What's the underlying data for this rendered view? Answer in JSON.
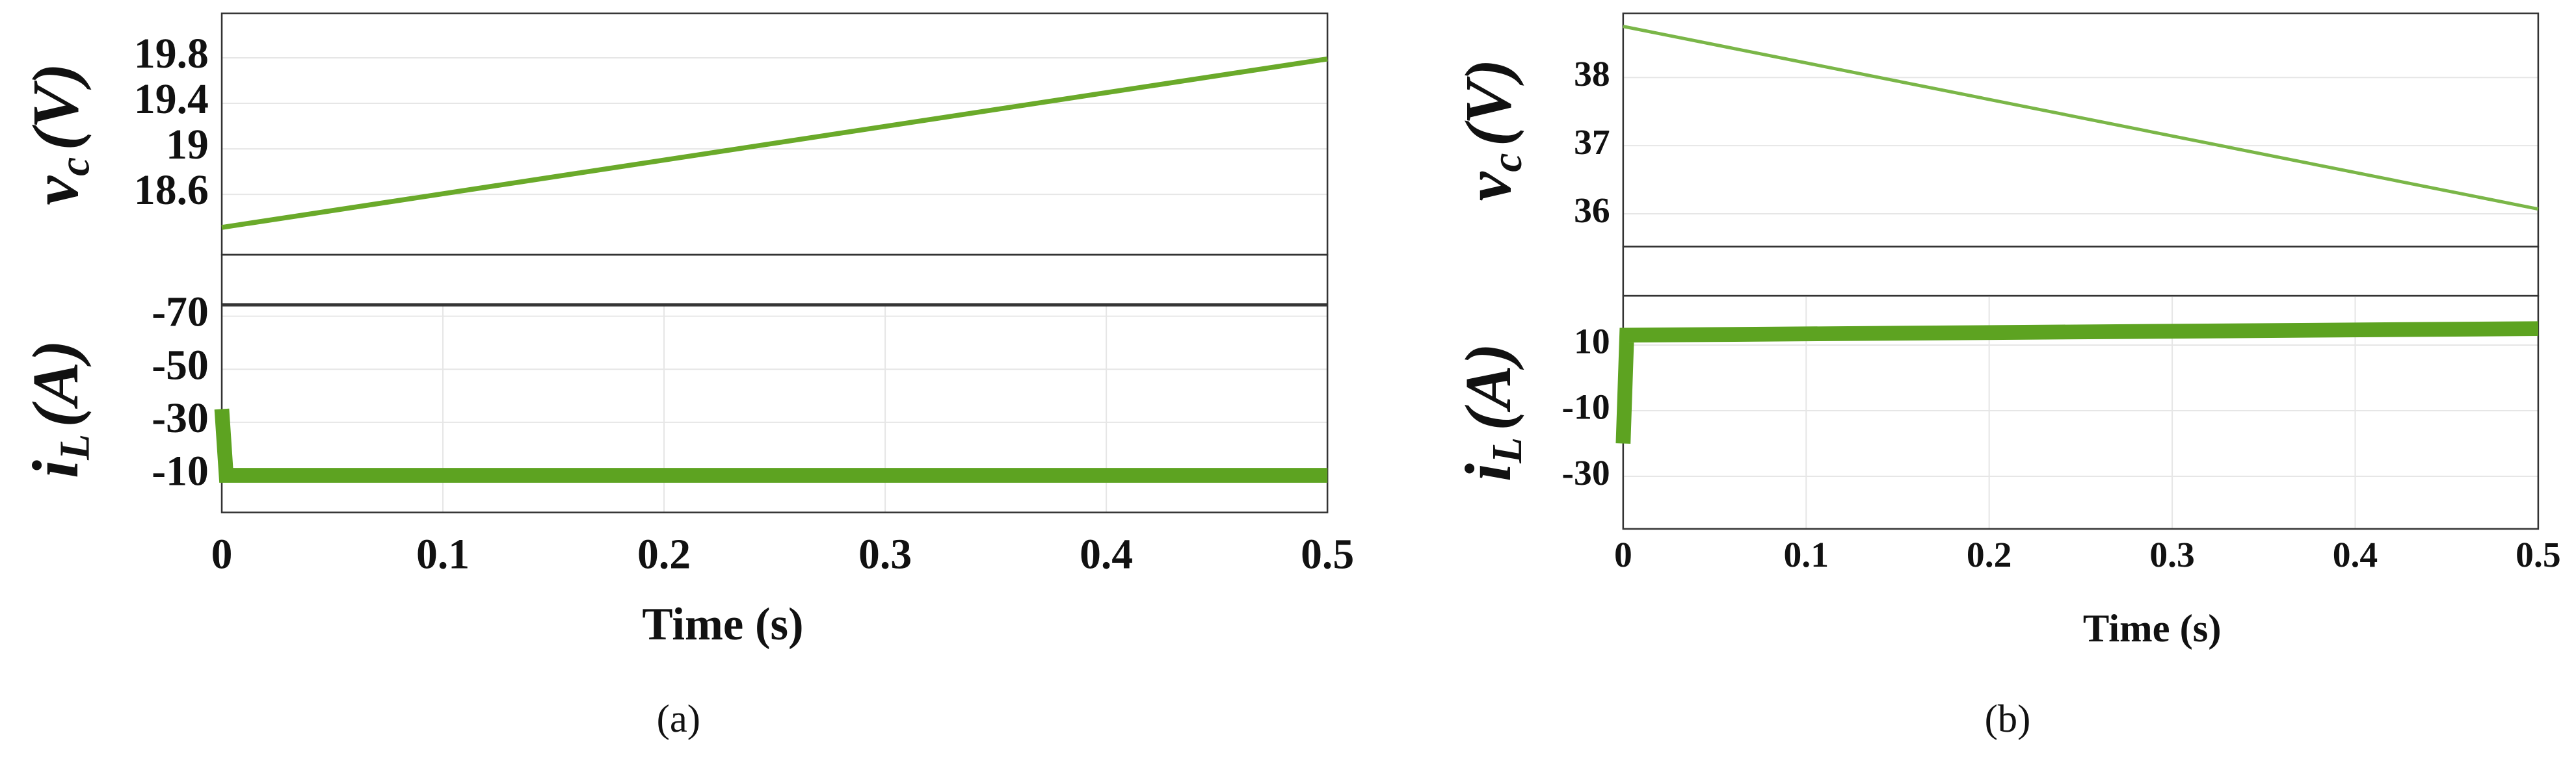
{
  "chart_data": [
    {
      "type": "line",
      "y_label": "v",
      "y_label_sub": "c",
      "y_label_unit": "(V)",
      "x": [
        0,
        0.5
      ],
      "series": [
        {
          "color": "#6aaa2a",
          "values": [
            18.31,
            19.79
          ]
        }
      ],
      "xlim": [
        0,
        0.5
      ],
      "ylim": [
        18.07,
        20.19
      ],
      "yticks": [
        18.6,
        19,
        19.4,
        19.8
      ],
      "grid": true
    },
    {
      "type": "line",
      "y_label": "i",
      "y_label_sub": "L",
      "y_label_unit": "(A)",
      "x_label": "Time (s)",
      "x": [
        0,
        0.002,
        0.5
      ],
      "series": [
        {
          "color": "#5da321",
          "values": [
            -35,
            -10,
            -10
          ]
        }
      ],
      "xlim": [
        0,
        0.5
      ],
      "ylim": [
        4,
        -74
      ],
      "xticks": [
        0,
        0.1,
        0.2,
        0.3,
        0.4,
        0.5
      ],
      "yticks": [
        -10,
        -30,
        -50,
        -70
      ],
      "grid": true
    },
    {
      "type": "line",
      "y_label": "v",
      "y_label_sub": "c",
      "y_label_unit": "(V)",
      "x": [
        0,
        0.5
      ],
      "series": [
        {
          "color": "#7ab648",
          "values": [
            38.75,
            36.07
          ]
        }
      ],
      "xlim": [
        0,
        0.5
      ],
      "ylim": [
        35.52,
        38.94
      ],
      "yticks": [
        36,
        37,
        38
      ],
      "grid": true
    },
    {
      "type": "line",
      "y_label": "i",
      "y_label_sub": "L",
      "y_label_unit": "(A)",
      "x_label": "Time (s)",
      "x": [
        0,
        0.002,
        0.5
      ],
      "series": [
        {
          "color": "#5da321",
          "values": [
            -20,
            13,
            15
          ]
        }
      ],
      "xlim": [
        0,
        0.5
      ],
      "ylim": [
        -46,
        25
      ],
      "xticks": [
        0,
        0.1,
        0.2,
        0.3,
        0.4,
        0.5
      ],
      "yticks": [
        10,
        -10,
        -30
      ],
      "grid": true
    }
  ],
  "captions": [
    "(a)",
    "(b)"
  ]
}
